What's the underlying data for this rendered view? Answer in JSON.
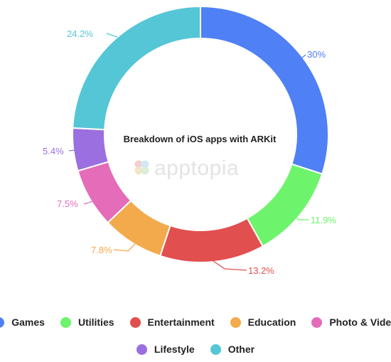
{
  "chart_data": {
    "type": "pie",
    "title": "Breakdown of iOS apps with ARKit",
    "watermark": "apptopia",
    "categories": [
      "Games",
      "Utilities",
      "Entertainment",
      "Education",
      "Photo & Video",
      "Lifestyle",
      "Other"
    ],
    "values": [
      30,
      11.9,
      13.2,
      7.8,
      7.5,
      5.4,
      24.2
    ],
    "labels": [
      "30%",
      "11.9%",
      "13.2%",
      "7.8%",
      "7.5%",
      "5.4%",
      "24.2%"
    ],
    "colors": [
      "#4f80f5",
      "#6ef46c",
      "#e24f4f",
      "#f3aa4c",
      "#e46cb9",
      "#9b6fe0",
      "#55c6d6"
    ],
    "legend_position": "bottom"
  }
}
